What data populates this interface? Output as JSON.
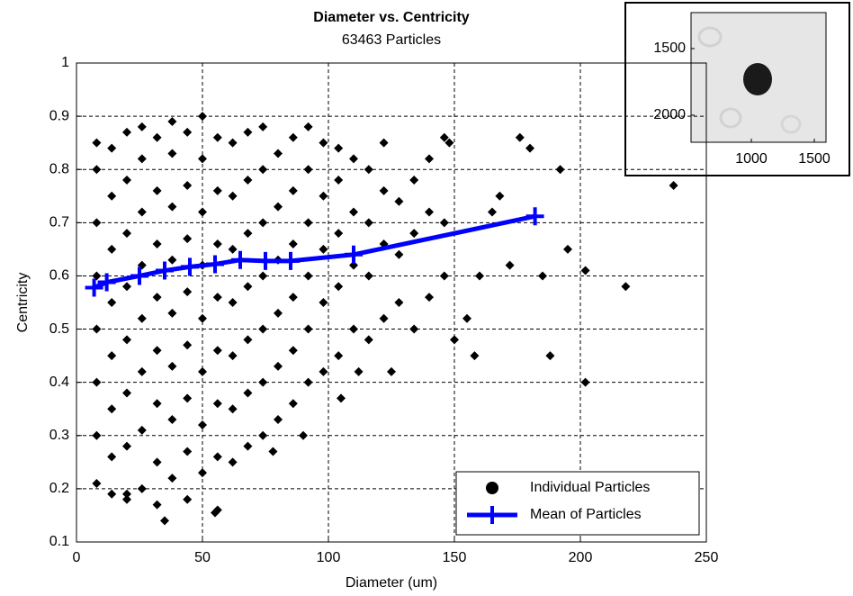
{
  "chart_data": [
    {
      "type": "scatter",
      "title": "Diameter vs. Centricity",
      "subtitle": "63463 Particles",
      "x_label": "Diameter (um)",
      "y_label": "Centricity",
      "xlim": [
        0,
        250
      ],
      "ylim": [
        0.1,
        1
      ],
      "xticks": [
        0,
        50,
        100,
        150,
        200,
        250
      ],
      "yticks": [
        0.1,
        0.2,
        0.3,
        0.4,
        0.5,
        0.6,
        0.7,
        0.8,
        0.9,
        1
      ],
      "grid": true,
      "legend": "lower right",
      "series": [
        {
          "name": "Individual Particles",
          "color": "#000000",
          "marker": "diamond",
          "x": [
            8,
            8,
            8,
            8,
            8,
            8,
            8,
            8,
            14,
            14,
            14,
            14,
            14,
            14,
            14,
            14,
            20,
            20,
            20,
            20,
            20,
            20,
            20,
            20,
            26,
            26,
            26,
            26,
            26,
            26,
            26,
            26,
            32,
            32,
            32,
            32,
            32,
            32,
            32,
            32,
            38,
            38,
            38,
            38,
            38,
            38,
            38,
            38,
            44,
            44,
            44,
            44,
            44,
            44,
            44,
            44,
            50,
            50,
            50,
            50,
            50,
            50,
            50,
            50,
            56,
            56,
            56,
            56,
            56,
            56,
            56,
            56,
            62,
            62,
            62,
            62,
            62,
            62,
            62,
            68,
            68,
            68,
            68,
            68,
            68,
            68,
            74,
            74,
            74,
            74,
            74,
            74,
            74,
            80,
            80,
            80,
            80,
            80,
            80,
            86,
            86,
            86,
            86,
            86,
            86,
            92,
            92,
            92,
            92,
            92,
            92,
            98,
            98,
            98,
            98,
            98,
            104,
            104,
            104,
            104,
            104,
            110,
            110,
            110,
            110,
            116,
            116,
            116,
            116,
            122,
            122,
            122,
            122,
            128,
            128,
            128,
            134,
            134,
            134,
            140,
            140,
            140,
            146,
            146,
            146,
            150,
            155,
            158,
            160,
            165,
            168,
            172,
            176,
            180,
            185,
            188,
            192,
            195,
            202,
            202,
            218,
            237,
            35,
            20,
            55,
            105,
            112,
            125,
            148,
            90,
            78
          ],
          "values": [
            0.21,
            0.3,
            0.4,
            0.5,
            0.6,
            0.7,
            0.8,
            0.85,
            0.19,
            0.26,
            0.35,
            0.45,
            0.55,
            0.65,
            0.75,
            0.84,
            0.18,
            0.28,
            0.38,
            0.48,
            0.58,
            0.68,
            0.78,
            0.87,
            0.2,
            0.31,
            0.42,
            0.52,
            0.62,
            0.72,
            0.82,
            0.88,
            0.17,
            0.25,
            0.36,
            0.46,
            0.56,
            0.66,
            0.76,
            0.86,
            0.22,
            0.33,
            0.43,
            0.53,
            0.63,
            0.73,
            0.83,
            0.89,
            0.18,
            0.27,
            0.37,
            0.47,
            0.57,
            0.67,
            0.77,
            0.87,
            0.23,
            0.32,
            0.42,
            0.52,
            0.62,
            0.72,
            0.82,
            0.9,
            0.16,
            0.26,
            0.36,
            0.46,
            0.56,
            0.66,
            0.76,
            0.86,
            0.25,
            0.35,
            0.45,
            0.55,
            0.65,
            0.75,
            0.85,
            0.28,
            0.38,
            0.48,
            0.58,
            0.68,
            0.78,
            0.87,
            0.3,
            0.4,
            0.5,
            0.6,
            0.7,
            0.8,
            0.88,
            0.33,
            0.43,
            0.53,
            0.63,
            0.73,
            0.83,
            0.36,
            0.46,
            0.56,
            0.66,
            0.76,
            0.86,
            0.4,
            0.5,
            0.6,
            0.7,
            0.8,
            0.88,
            0.42,
            0.55,
            0.65,
            0.75,
            0.85,
            0.45,
            0.58,
            0.68,
            0.78,
            0.84,
            0.5,
            0.62,
            0.72,
            0.82,
            0.48,
            0.6,
            0.7,
            0.8,
            0.52,
            0.66,
            0.76,
            0.85,
            0.55,
            0.64,
            0.74,
            0.5,
            0.68,
            0.78,
            0.56,
            0.72,
            0.82,
            0.6,
            0.7,
            0.86,
            0.48,
            0.52,
            0.45,
            0.6,
            0.72,
            0.75,
            0.62,
            0.86,
            0.84,
            0.6,
            0.45,
            0.8,
            0.65,
            0.61,
            0.4,
            0.58,
            0.77,
            0.14,
            0.19,
            0.155,
            0.37,
            0.42,
            0.42,
            0.85,
            0.3,
            0.27
          ]
        },
        {
          "name": "Mean of Particles",
          "color": "#0000ff",
          "marker": "plus",
          "x": [
            7,
            12,
            25,
            35,
            45,
            55,
            65,
            75,
            85,
            110,
            182
          ],
          "values": [
            0.578,
            0.588,
            0.6,
            0.61,
            0.617,
            0.622,
            0.63,
            0.628,
            0.628,
            0.64,
            0.712
          ]
        }
      ]
    },
    {
      "type": "image",
      "xlim": [
        521,
        1593
      ],
      "ylim": [
        1230,
        2203
      ],
      "xticks": [
        1000,
        1500
      ],
      "yticks": [
        1500,
        2000
      ]
    }
  ]
}
